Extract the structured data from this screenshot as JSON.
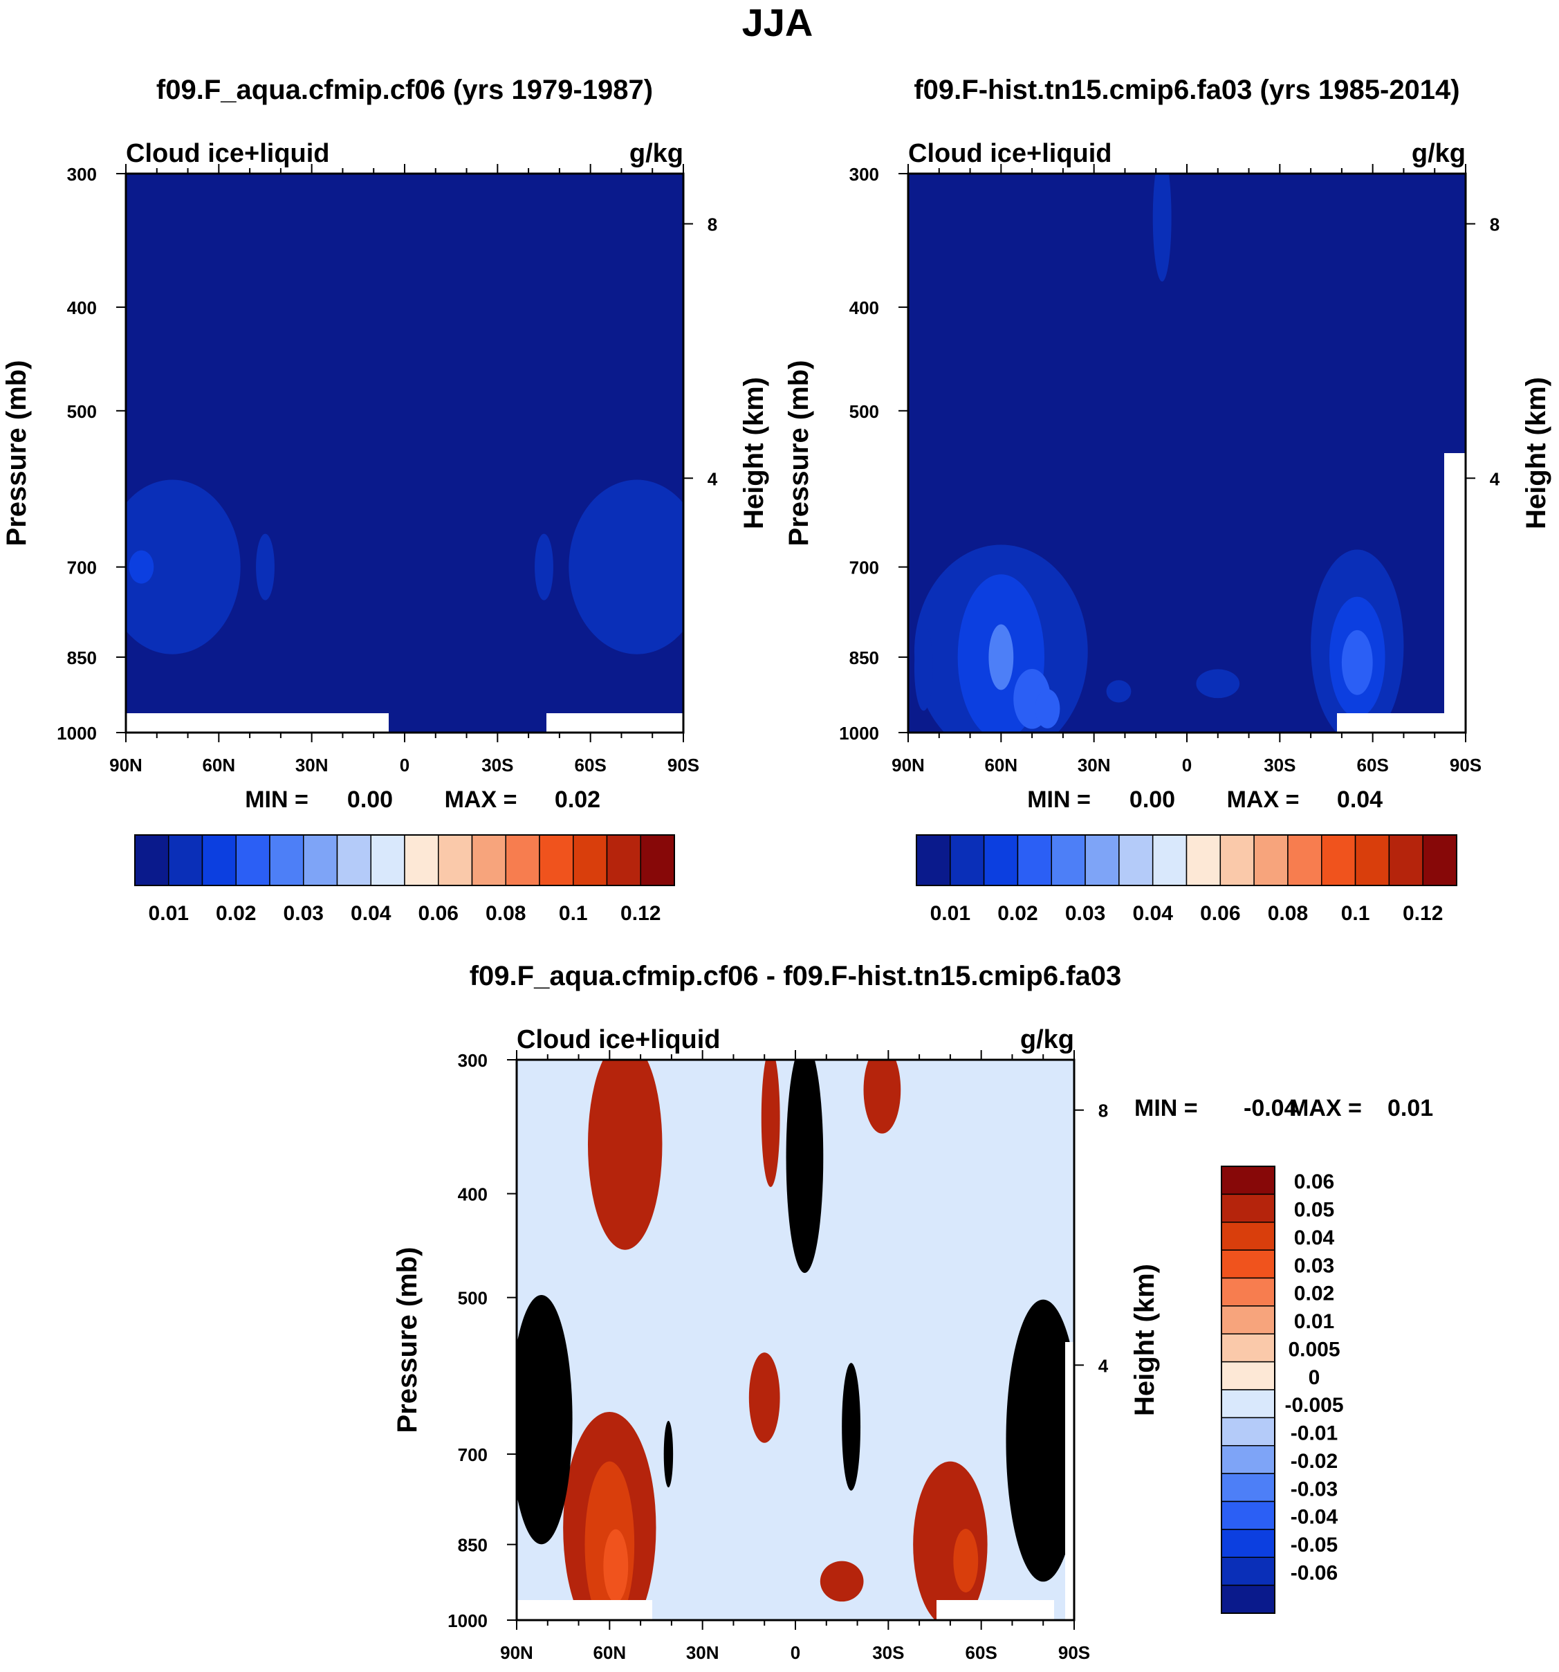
{
  "figure_title": "JJA",
  "colors": {
    "palette": [
      "#0a1a8c",
      "#0a2fb8",
      "#0c3fe0",
      "#2b5ff5",
      "#4d7ff7",
      "#7ea4f7",
      "#b4cbf9",
      "#d9e8fc",
      "#fde8d6",
      "#fac9aa",
      "#f7a47c",
      "#f77d4f",
      "#f0531d",
      "#d93e0c",
      "#b5240c",
      "#870808"
    ],
    "background": "#ffffff",
    "frame": "#000000"
  },
  "chart_data": [
    {
      "type": "contour",
      "title": "f09.F_aqua.cfmip.cf06 (yrs 1979-1987)",
      "left_label": "Cloud ice+liquid",
      "right_label": "g/kg",
      "ylabel": "Pressure (mb)",
      "y2label": "Height (km)",
      "x_ticks": [
        "90N",
        "60N",
        "30N",
        "0",
        "30S",
        "60S",
        "90S"
      ],
      "y_ticks": [
        "300",
        "400",
        "500",
        "700",
        "850",
        "1000"
      ],
      "y2_ticks": [
        "8",
        "4"
      ],
      "stats": {
        "min_label": "MIN =",
        "min": "0.00",
        "max_label": "MAX =",
        "max": "0.02"
      },
      "colorbar": {
        "orientation": "horizontal",
        "labels": [
          "0.01",
          "0.02",
          "0.03",
          "0.04",
          "0.06",
          "0.08",
          "0.1",
          "0.12"
        ]
      },
      "regions": [
        {
          "level": 1,
          "lat": -75,
          "p": 700,
          "dlat": 22,
          "dp": 130
        },
        {
          "level": 1,
          "lat": 75,
          "p": 700,
          "dlat": 22,
          "dp": 130
        },
        {
          "level": 2,
          "lat": -85,
          "p": 700,
          "dlat": 4,
          "dp": 25
        },
        {
          "level": 1,
          "lat": -45,
          "p": 700,
          "dlat": 3,
          "dp": 50
        },
        {
          "level": 1,
          "lat": 45,
          "p": 700,
          "dlat": 3,
          "dp": 50
        }
      ]
    },
    {
      "type": "contour",
      "title": "f09.F-hist.tn15.cmip6.fa03 (yrs 1985-2014)",
      "left_label": "Cloud ice+liquid",
      "right_label": "g/kg",
      "ylabel": "Pressure (mb)",
      "y2label": "Height (km)",
      "x_ticks": [
        "90N",
        "60N",
        "30N",
        "0",
        "30S",
        "60S",
        "90S"
      ],
      "y_ticks": [
        "300",
        "400",
        "500",
        "700",
        "850",
        "1000"
      ],
      "y2_ticks": [
        "8",
        "4"
      ],
      "stats": {
        "min_label": "MIN =",
        "min": "0.00",
        "max_label": "MAX =",
        "max": "0.04"
      },
      "colorbar": {
        "orientation": "horizontal",
        "labels": [
          "0.01",
          "0.02",
          "0.03",
          "0.04",
          "0.06",
          "0.08",
          "0.1",
          "0.12"
        ]
      },
      "regions": [
        {
          "level": 1,
          "lat": -60,
          "p": 840,
          "dlat": 28,
          "dp": 190
        },
        {
          "level": 2,
          "lat": -60,
          "p": 850,
          "dlat": 14,
          "dp": 150
        },
        {
          "level": 3,
          "lat": -50,
          "p": 930,
          "dlat": 6,
          "dp": 60
        },
        {
          "level": 4,
          "lat": -60,
          "p": 850,
          "dlat": 4,
          "dp": 60
        },
        {
          "level": 3,
          "lat": -45,
          "p": 950,
          "dlat": 4,
          "dp": 40
        },
        {
          "level": 1,
          "lat": 55,
          "p": 830,
          "dlat": 15,
          "dp": 170
        },
        {
          "level": 2,
          "lat": 55,
          "p": 850,
          "dlat": 9,
          "dp": 110
        },
        {
          "level": 3,
          "lat": 55,
          "p": 860,
          "dlat": 5,
          "dp": 60
        },
        {
          "level": 1,
          "lat": -8,
          "p": 330,
          "dlat": 3,
          "dp": 45
        },
        {
          "level": 1,
          "lat": 10,
          "p": 900,
          "dlat": 7,
          "dp": 28
        },
        {
          "level": 1,
          "lat": -22,
          "p": 915,
          "dlat": 4,
          "dp": 22
        },
        {
          "level": 1,
          "lat": -85,
          "p": 870,
          "dlat": 3,
          "dp": 80
        }
      ]
    },
    {
      "type": "contour",
      "title": "f09.F_aqua.cfmip.cf06 - f09.F-hist.tn15.cmip6.fa03",
      "left_label": "Cloud ice+liquid",
      "right_label": "g/kg",
      "ylabel": "Pressure (mb)",
      "y2label": "Height (km)",
      "x_ticks": [
        "90N",
        "60N",
        "30N",
        "0",
        "30S",
        "60S",
        "90S"
      ],
      "y_ticks": [
        "300",
        "400",
        "500",
        "700",
        "850",
        "1000"
      ],
      "y2_ticks": [
        "8",
        "4"
      ],
      "stats": {
        "min_label": "MIN =",
        "min": "-0.04",
        "max_label": "MAX =",
        "max": "0.01"
      },
      "colorbar": {
        "orientation": "vertical",
        "labels": [
          "0.06",
          "0.05",
          "0.04",
          "0.03",
          "0.02",
          "0.01",
          "0.005",
          "0",
          "-0.005",
          "-0.01",
          "-0.02",
          "-0.03",
          "-0.04",
          "-0.05",
          "-0.06"
        ]
      },
      "regions": [
        {
          "level": 6,
          "lat": -60,
          "p": 820,
          "dlat": 15,
          "dp": 200
        },
        {
          "level": 5,
          "lat": -60,
          "p": 850,
          "dlat": 8,
          "dp": 150
        },
        {
          "level": 4,
          "lat": -58,
          "p": 890,
          "dlat": 4,
          "dp": 70
        },
        {
          "level": 6,
          "lat": 50,
          "p": 850,
          "dlat": 12,
          "dp": 150
        },
        {
          "level": 5,
          "lat": 55,
          "p": 880,
          "dlat": 4,
          "dp": 60
        },
        {
          "level": 6,
          "lat": -55,
          "p": 360,
          "dlat": 12,
          "dp": 80
        },
        {
          "level": 6,
          "lat": -8,
          "p": 340,
          "dlat": 3,
          "dp": 50
        },
        {
          "level": 6,
          "lat": -10,
          "p": 620,
          "dlat": 5,
          "dp": 60
        },
        {
          "level": 6,
          "lat": 15,
          "p": 920,
          "dlat": 7,
          "dp": 40
        },
        {
          "level": 6,
          "lat": 28,
          "p": 320,
          "dlat": 6,
          "dp": 30
        },
        {
          "level": 8,
          "lat": -82,
          "p": 650,
          "dlat": 10,
          "dp": 170
        },
        {
          "level": 9,
          "lat": -82,
          "p": 650,
          "dlat": 7,
          "dp": 110
        },
        {
          "level": 10,
          "lat": -84,
          "p": 650,
          "dlat": 5,
          "dp": 70
        },
        {
          "level": 8,
          "lat": 80,
          "p": 680,
          "dlat": 12,
          "dp": 200
        },
        {
          "level": 9,
          "lat": 82,
          "p": 680,
          "dlat": 8,
          "dp": 120
        },
        {
          "level": 10,
          "lat": 83,
          "p": 690,
          "dlat": 4,
          "dp": 50
        },
        {
          "level": 8,
          "lat": 3,
          "p": 370,
          "dlat": 6,
          "dp": 90
        },
        {
          "level": 8,
          "lat": 18,
          "p": 660,
          "dlat": 3,
          "dp": 90
        },
        {
          "level": 9,
          "lat": -41,
          "p": 700,
          "dlat": 1.5,
          "dp": 50
        }
      ]
    }
  ]
}
